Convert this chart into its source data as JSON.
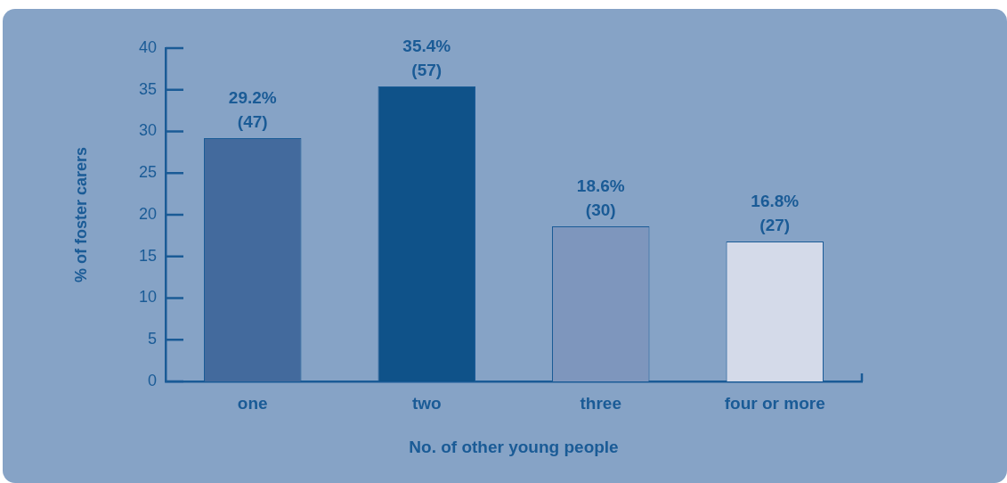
{
  "chart_data": {
    "type": "bar",
    "categories": [
      "one",
      "two",
      "three",
      "four or more"
    ],
    "values": [
      29.2,
      35.4,
      18.6,
      16.8
    ],
    "colors": [
      "#436a9d",
      "#0f5289",
      "#7e96bd",
      "#d4dae9"
    ],
    "value_labels": [
      "29.2%\n(47)",
      "35.4%\n(57)",
      "18.6%\n(30)",
      "16.8%\n(27)"
    ],
    "xlabel": "No. of other young people",
    "ylabel": "% of foster carers",
    "ylim": [
      0,
      40
    ],
    "yticks": [
      0,
      5,
      10,
      15,
      20,
      25,
      30,
      35,
      40
    ]
  }
}
